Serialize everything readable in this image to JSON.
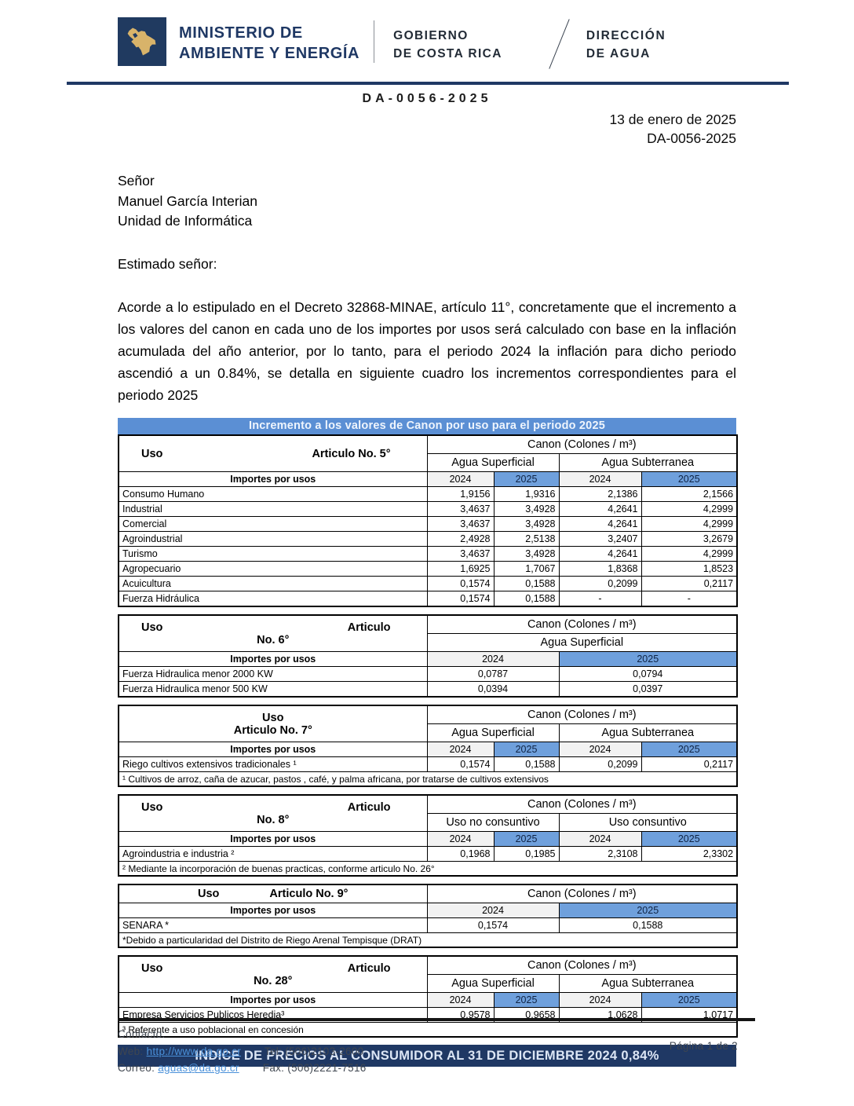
{
  "header": {
    "ministry": [
      "MINISTERIO DE",
      "AMBIENTE Y ENERGÍA"
    ],
    "government": [
      "GOBIERNO",
      "DE COSTA RICA"
    ],
    "direction": [
      "DIRECCIÓN",
      "DE AGUA"
    ],
    "logo_icon": "costa-rica-map-icon",
    "document_code": "DA-0056-2025"
  },
  "letter": {
    "date": "13 de enero de 2025",
    "reference": "DA-0056-2025",
    "recipient": {
      "title": "Señor",
      "name": "Manuel García Interian",
      "unit": "Unidad de Informática"
    },
    "salutation": "Estimado señor:",
    "body": "Acorde a lo estipulado en el Decreto 32868-MINAE, artículo 11°, concretamente que el incremento a los valores del canon en cada uno de los importes por usos será calculado con base en la inflación acumulada del año anterior, por lo tanto, para el periodo 2024 la inflación para dicho periodo ascendió a un 0.84%, se detalla en siguiente cuadro los incrementos correspondientes para el periodo 2025"
  },
  "colors": {
    "navy": "#1F3864",
    "title_blue": "#5B8FD4",
    "cell_2025_blue": "#6FA0DC",
    "cell_2024_gray": "#F2F2F2",
    "logo_gold": "#D8B36A",
    "link_blue": "#4a90d9"
  },
  "tables": [
    {
      "name": "articulo-5",
      "title": "Incremento a los valores de Canon por uso para el periodo 2025",
      "left_header": {
        "style": "split1",
        "parts": [
          "Uso",
          "Articulo No. 5°"
        ]
      },
      "canon_label": "Canon (Colones / m³)",
      "subheaders": [
        "Agua Superficial",
        "Agua Subterranea"
      ],
      "importes_label": "Importes por usos",
      "years": [
        "2024",
        "2025",
        "2024",
        "2025"
      ],
      "align": "right",
      "rows": [
        {
          "label": "Consumo Humano",
          "values": [
            "1,9156",
            "1,9316",
            "2,1386",
            "2,1566"
          ]
        },
        {
          "label": "Industrial",
          "values": [
            "3,4637",
            "3,4928",
            "4,2641",
            "4,2999"
          ]
        },
        {
          "label": "Comercial",
          "values": [
            "3,4637",
            "3,4928",
            "4,2641",
            "4,2999"
          ]
        },
        {
          "label": "Agroindustrial",
          "values": [
            "2,4928",
            "2,5138",
            "3,2407",
            "3,2679"
          ]
        },
        {
          "label": "Turismo",
          "values": [
            "3,4637",
            "3,4928",
            "4,2641",
            "4,2999"
          ]
        },
        {
          "label": "Agropecuario",
          "values": [
            "1,6925",
            "1,7067",
            "1,8368",
            "1,8523"
          ]
        },
        {
          "label": "Acuicultura",
          "values": [
            "0,1574",
            "0,1588",
            "0,2099",
            "0,2117"
          ]
        },
        {
          "label": "Fuerza Hidráulica",
          "values": [
            "0,1574",
            "0,1588",
            "-",
            "-"
          ]
        }
      ],
      "footnote": null
    },
    {
      "name": "articulo-6",
      "title": null,
      "left_header": {
        "style": "split2",
        "parts": [
          "Uso",
          "Articulo",
          "No. 6°"
        ]
      },
      "canon_label": "Canon (Colones / m³)",
      "subheaders": [
        "Agua Superficial"
      ],
      "importes_label": "Importes por usos",
      "years": [
        "2024",
        "2025"
      ],
      "align": "center",
      "rows": [
        {
          "label": "Fuerza Hidraulica menor 2000  KW",
          "values": [
            "0,0787",
            "0,0794"
          ]
        },
        {
          "label": "Fuerza Hidraulica menor 500  KW",
          "values": [
            "0,0394",
            "0,0397"
          ]
        }
      ],
      "footnote": null
    },
    {
      "name": "articulo-7",
      "title": null,
      "left_header": {
        "style": "center2",
        "parts": [
          "Uso",
          "Articulo No. 7°"
        ]
      },
      "canon_label": "Canon (Colones / m³)",
      "subheaders": [
        "Agua Superficial",
        "Agua Subterranea"
      ],
      "importes_label": "Importes por usos",
      "years": [
        "2024",
        "2025",
        "2024",
        "2025"
      ],
      "align": "right",
      "rows": [
        {
          "label": "Riego cultivos extensivos tradicionales ¹",
          "values": [
            "0,1574",
            "0,1588",
            "0,2099",
            "0,2117"
          ]
        }
      ],
      "footnote": "¹ Cultivos de arroz, caña de azucar, pastos , café, y palma africana, por tratarse de cultivos extensivos"
    },
    {
      "name": "articulo-8",
      "title": null,
      "left_header": {
        "style": "split2",
        "parts": [
          "Uso",
          "Articulo",
          "No. 8°"
        ]
      },
      "canon_label": "Canon (Colones / m³)",
      "subheaders": [
        "Uso no consuntivo",
        "Uso consuntivo"
      ],
      "importes_label": "Importes por usos",
      "years": [
        "2024",
        "2025",
        "2024",
        "2025"
      ],
      "align": "right",
      "rows": [
        {
          "label": "Agroindustria e industria ²",
          "values": [
            "0,1968",
            "0,1985",
            "2,3108",
            "2,3302"
          ]
        }
      ],
      "footnote": "² Mediante la incorporación de buenas practicas, conforme articulo No. 26°"
    },
    {
      "name": "articulo-9",
      "title": null,
      "left_header": {
        "style": "inline",
        "parts": [
          "Uso",
          "Articulo No. 9°"
        ]
      },
      "canon_label": "Canon (Colones / m³)",
      "subheaders": [],
      "importes_label": "Importes por usos",
      "years": [
        "2024",
        "2025"
      ],
      "align": "center",
      "rows": [
        {
          "label": "SENARA *",
          "values": [
            "0,1574",
            "0,1588"
          ]
        }
      ],
      "footnote": "*Debido a particularidad del Distrito de Riego Arenal Tempisque (DRAT)"
    },
    {
      "name": "articulo-28",
      "title": null,
      "left_header": {
        "style": "split2",
        "parts": [
          "Uso",
          "Articulo",
          "No. 28°"
        ]
      },
      "canon_label": "Canon (Colones / m³)",
      "subheaders": [
        "Agua Superficial",
        "Agua Subterranea"
      ],
      "importes_label": "Importes por usos",
      "years": [
        "2024",
        "2025",
        "2024",
        "2025"
      ],
      "align": "right",
      "rows": [
        {
          "label": "Empresa Servicios Publicos Heredia³",
          "values": [
            "0,9578",
            "0,9658",
            "1,0628",
            "1,0717"
          ]
        }
      ],
      "footnote": "³ Referente  a uso poblacional en concesión"
    }
  ],
  "banner": {
    "text": "INDICE DE PRECIOS AL CONSUMIDOR AL 31 DE DICIEMBRE 2024 0,84%"
  },
  "footer": {
    "contact_label": "Contacto:",
    "web_label": "Web:",
    "web_link": "http://www.da.go.cr",
    "tel": "Tel: (506)2103-2600",
    "mail_label": "Correo:",
    "mail_link": "aguas@da.go.cr",
    "fax": "Fax: (506)2221-7516",
    "page": "Página 1 de 2"
  }
}
